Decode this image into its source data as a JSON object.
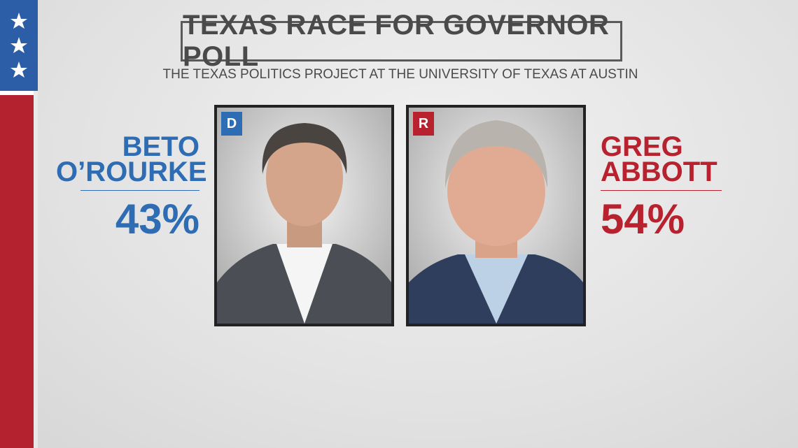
{
  "header": {
    "title": "TEXAS RACE FOR GOVERNOR POLL",
    "subtitle": "THE TEXAS POLITICS PROJECT AT THE UNIVERSITY OF TEXAS AT AUSTIN"
  },
  "candidates": [
    {
      "name_lines": [
        "BETO",
        "O’ROURKE"
      ],
      "party": "D",
      "percent": "43%"
    },
    {
      "name_lines": [
        "GREG",
        "ABBOTT"
      ],
      "party": "R",
      "percent": "54%"
    }
  ]
}
